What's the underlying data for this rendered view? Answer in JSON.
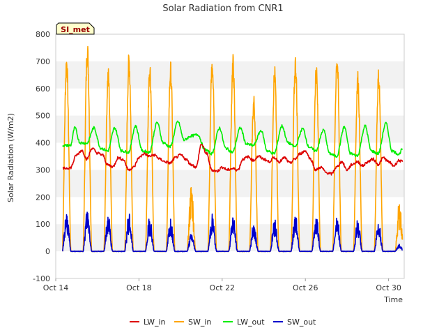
{
  "chart_data": {
    "type": "line",
    "title": "Solar Radiation from CNR1",
    "xlabel": "Time",
    "ylabel": "Solar Radiation (W/m2)",
    "station_label": "SI_met",
    "ylim": [
      -100,
      800
    ],
    "yticks": [
      -100,
      0,
      100,
      200,
      300,
      400,
      500,
      600,
      700,
      800
    ],
    "xlim": [
      "2023-10-14",
      "2023-10-30T18:00"
    ],
    "xticks": [
      {
        "date": "2023-10-14",
        "label": "Oct 14"
      },
      {
        "date": "2023-10-18",
        "label": "Oct 18"
      },
      {
        "date": "2023-10-22",
        "label": "Oct 22"
      },
      {
        "date": "2023-10-26",
        "label": "Oct 26"
      },
      {
        "date": "2023-10-30",
        "label": "Oct 30"
      }
    ],
    "grid": "horizontal bands",
    "legend_position": "bottom",
    "series": [
      {
        "name": "LW_in",
        "color": "#dd0000",
        "points": [
          [
            "2023-10-14T08:00",
            305
          ],
          [
            "2023-10-14T17:00",
            308
          ],
          [
            "2023-10-15T00:00",
            355
          ],
          [
            "2023-10-15T06:00",
            372
          ],
          [
            "2023-10-15T12:00",
            340
          ],
          [
            "2023-10-15T18:00",
            380
          ],
          [
            "2023-10-16T00:00",
            362
          ],
          [
            "2023-10-16T06:00",
            355
          ],
          [
            "2023-10-16T12:00",
            318
          ],
          [
            "2023-10-16T18:00",
            312
          ],
          [
            "2023-10-17T00:00",
            345
          ],
          [
            "2023-10-17T06:00",
            338
          ],
          [
            "2023-10-17T12:00",
            300
          ],
          [
            "2023-10-17T18:00",
            310
          ],
          [
            "2023-10-18T00:00",
            345
          ],
          [
            "2023-10-18T06:00",
            360
          ],
          [
            "2023-10-18T12:00",
            350
          ],
          [
            "2023-10-18T18:00",
            355
          ],
          [
            "2023-10-19T00:00",
            340
          ],
          [
            "2023-10-19T06:00",
            330
          ],
          [
            "2023-10-19T12:00",
            325
          ],
          [
            "2023-10-19T18:00",
            345
          ],
          [
            "2023-10-20T00:00",
            355
          ],
          [
            "2023-10-20T06:00",
            340
          ],
          [
            "2023-10-20T12:00",
            320
          ],
          [
            "2023-10-20T18:00",
            310
          ],
          [
            "2023-10-21T00:00",
            395
          ],
          [
            "2023-10-21T06:00",
            360
          ],
          [
            "2023-10-21T12:00",
            300
          ],
          [
            "2023-10-21T18:00",
            295
          ],
          [
            "2023-10-22T00:00",
            310
          ],
          [
            "2023-10-22T06:00",
            300
          ],
          [
            "2023-10-22T12:00",
            305
          ],
          [
            "2023-10-22T18:00",
            300
          ],
          [
            "2023-10-23T00:00",
            340
          ],
          [
            "2023-10-23T06:00",
            348
          ],
          [
            "2023-10-23T12:00",
            335
          ],
          [
            "2023-10-23T18:00",
            350
          ],
          [
            "2023-10-24T00:00",
            340
          ],
          [
            "2023-10-24T06:00",
            330
          ],
          [
            "2023-10-24T12:00",
            345
          ],
          [
            "2023-10-24T18:00",
            330
          ],
          [
            "2023-10-25T00:00",
            345
          ],
          [
            "2023-10-25T06:00",
            325
          ],
          [
            "2023-10-25T12:00",
            340
          ],
          [
            "2023-10-25T18:00",
            360
          ],
          [
            "2023-10-26T00:00",
            370
          ],
          [
            "2023-10-26T06:00",
            340
          ],
          [
            "2023-10-26T12:00",
            300
          ],
          [
            "2023-10-26T18:00",
            310
          ],
          [
            "2023-10-27T00:00",
            290
          ],
          [
            "2023-10-27T06:00",
            285
          ],
          [
            "2023-10-27T12:00",
            310
          ],
          [
            "2023-10-27T18:00",
            330
          ],
          [
            "2023-10-28T00:00",
            300
          ],
          [
            "2023-10-28T06:00",
            320
          ],
          [
            "2023-10-28T12:00",
            330
          ],
          [
            "2023-10-28T18:00",
            315
          ],
          [
            "2023-10-29T00:00",
            330
          ],
          [
            "2023-10-29T06:00",
            340
          ],
          [
            "2023-10-29T12:00",
            320
          ],
          [
            "2023-10-29T18:00",
            345
          ],
          [
            "2023-10-30T00:00",
            330
          ],
          [
            "2023-10-30T06:00",
            315
          ],
          [
            "2023-10-30T12:00",
            335
          ],
          [
            "2023-10-30T16:00",
            330
          ]
        ]
      },
      {
        "name": "SW_in",
        "color": "#ffa500",
        "days": [
          {
            "date": "2023-10-14",
            "peak": 720
          },
          {
            "date": "2023-10-15",
            "peak": 770
          },
          {
            "date": "2023-10-16",
            "peak": 670
          },
          {
            "date": "2023-10-17",
            "peak": 725
          },
          {
            "date": "2023-10-18",
            "peak": 700
          },
          {
            "date": "2023-10-19",
            "peak": 690
          },
          {
            "date": "2023-10-20",
            "peak": 190
          },
          {
            "date": "2023-10-21",
            "peak": 710
          },
          {
            "date": "2023-10-22",
            "peak": 715
          },
          {
            "date": "2023-10-23",
            "peak": 570
          },
          {
            "date": "2023-10-24",
            "peak": 675
          },
          {
            "date": "2023-10-25",
            "peak": 715
          },
          {
            "date": "2023-10-26",
            "peak": 690
          },
          {
            "date": "2023-10-27",
            "peak": 735
          },
          {
            "date": "2023-10-28",
            "peak": 655
          },
          {
            "date": "2023-10-29",
            "peak": 665
          },
          {
            "date": "2023-10-30",
            "peak": 135
          }
        ]
      },
      {
        "name": "LW_out",
        "color": "#00ee00",
        "points": [
          [
            "2023-10-14T08:00",
            390
          ],
          [
            "2023-10-14T17:00",
            390
          ],
          [
            "2023-10-14T22:00",
            455
          ],
          [
            "2023-10-15T04:00",
            400
          ],
          [
            "2023-10-15T12:00",
            398
          ],
          [
            "2023-10-15T20:00",
            455
          ],
          [
            "2023-10-16T04:00",
            380
          ],
          [
            "2023-10-16T12:00",
            370
          ],
          [
            "2023-10-16T20:00",
            455
          ],
          [
            "2023-10-17T04:00",
            370
          ],
          [
            "2023-10-17T12:00",
            365
          ],
          [
            "2023-10-17T20:00",
            462
          ],
          [
            "2023-10-18T04:00",
            370
          ],
          [
            "2023-10-18T12:00",
            365
          ],
          [
            "2023-10-18T21:00",
            475
          ],
          [
            "2023-10-19T04:00",
            400
          ],
          [
            "2023-10-19T12:00",
            385
          ],
          [
            "2023-10-19T21:00",
            478
          ],
          [
            "2023-10-20T04:00",
            410
          ],
          [
            "2023-10-20T12:00",
            425
          ],
          [
            "2023-10-20T20:00",
            430
          ],
          [
            "2023-10-21T04:00",
            375
          ],
          [
            "2023-10-21T12:00",
            360
          ],
          [
            "2023-10-21T21:00",
            455
          ],
          [
            "2023-10-22T04:00",
            380
          ],
          [
            "2023-10-22T12:00",
            365
          ],
          [
            "2023-10-22T21:00",
            455
          ],
          [
            "2023-10-23T04:00",
            395
          ],
          [
            "2023-10-23T12:00",
            390
          ],
          [
            "2023-10-23T21:00",
            445
          ],
          [
            "2023-10-24T04:00",
            370
          ],
          [
            "2023-10-24T12:00",
            360
          ],
          [
            "2023-10-24T21:00",
            462
          ],
          [
            "2023-10-25T04:00",
            400
          ],
          [
            "2023-10-25T12:00",
            385
          ],
          [
            "2023-10-25T21:00",
            452
          ],
          [
            "2023-10-26T04:00",
            385
          ],
          [
            "2023-10-26T12:00",
            370
          ],
          [
            "2023-10-26T21:00",
            447
          ],
          [
            "2023-10-27T04:00",
            360
          ],
          [
            "2023-10-27T12:00",
            350
          ],
          [
            "2023-10-27T21:00",
            458
          ],
          [
            "2023-10-28T04:00",
            360
          ],
          [
            "2023-10-28T12:00",
            352
          ],
          [
            "2023-10-28T21:00",
            462
          ],
          [
            "2023-10-29T04:00",
            370
          ],
          [
            "2023-10-29T12:00",
            360
          ],
          [
            "2023-10-29T21:00",
            472
          ],
          [
            "2023-10-30T04:00",
            370
          ],
          [
            "2023-10-30T12:00",
            358
          ],
          [
            "2023-10-30T16:00",
            378
          ]
        ]
      },
      {
        "name": "SW_out",
        "color": "#0000cc",
        "days": [
          {
            "date": "2023-10-14",
            "peak": 110
          },
          {
            "date": "2023-10-15",
            "peak": 118
          },
          {
            "date": "2023-10-16",
            "peak": 100
          },
          {
            "date": "2023-10-17",
            "peak": 105
          },
          {
            "date": "2023-10-18",
            "peak": 97
          },
          {
            "date": "2023-10-19",
            "peak": 92
          },
          {
            "date": "2023-10-20",
            "peak": 50
          },
          {
            "date": "2023-10-21",
            "peak": 100
          },
          {
            "date": "2023-10-22",
            "peak": 100
          },
          {
            "date": "2023-10-23",
            "peak": 80
          },
          {
            "date": "2023-10-24",
            "peak": 90
          },
          {
            "date": "2023-10-25",
            "peak": 107
          },
          {
            "date": "2023-10-26",
            "peak": 100
          },
          {
            "date": "2023-10-27",
            "peak": 100
          },
          {
            "date": "2023-10-28",
            "peak": 87
          },
          {
            "date": "2023-10-29",
            "peak": 85
          },
          {
            "date": "2023-10-30",
            "peak": 20
          }
        ]
      }
    ]
  }
}
